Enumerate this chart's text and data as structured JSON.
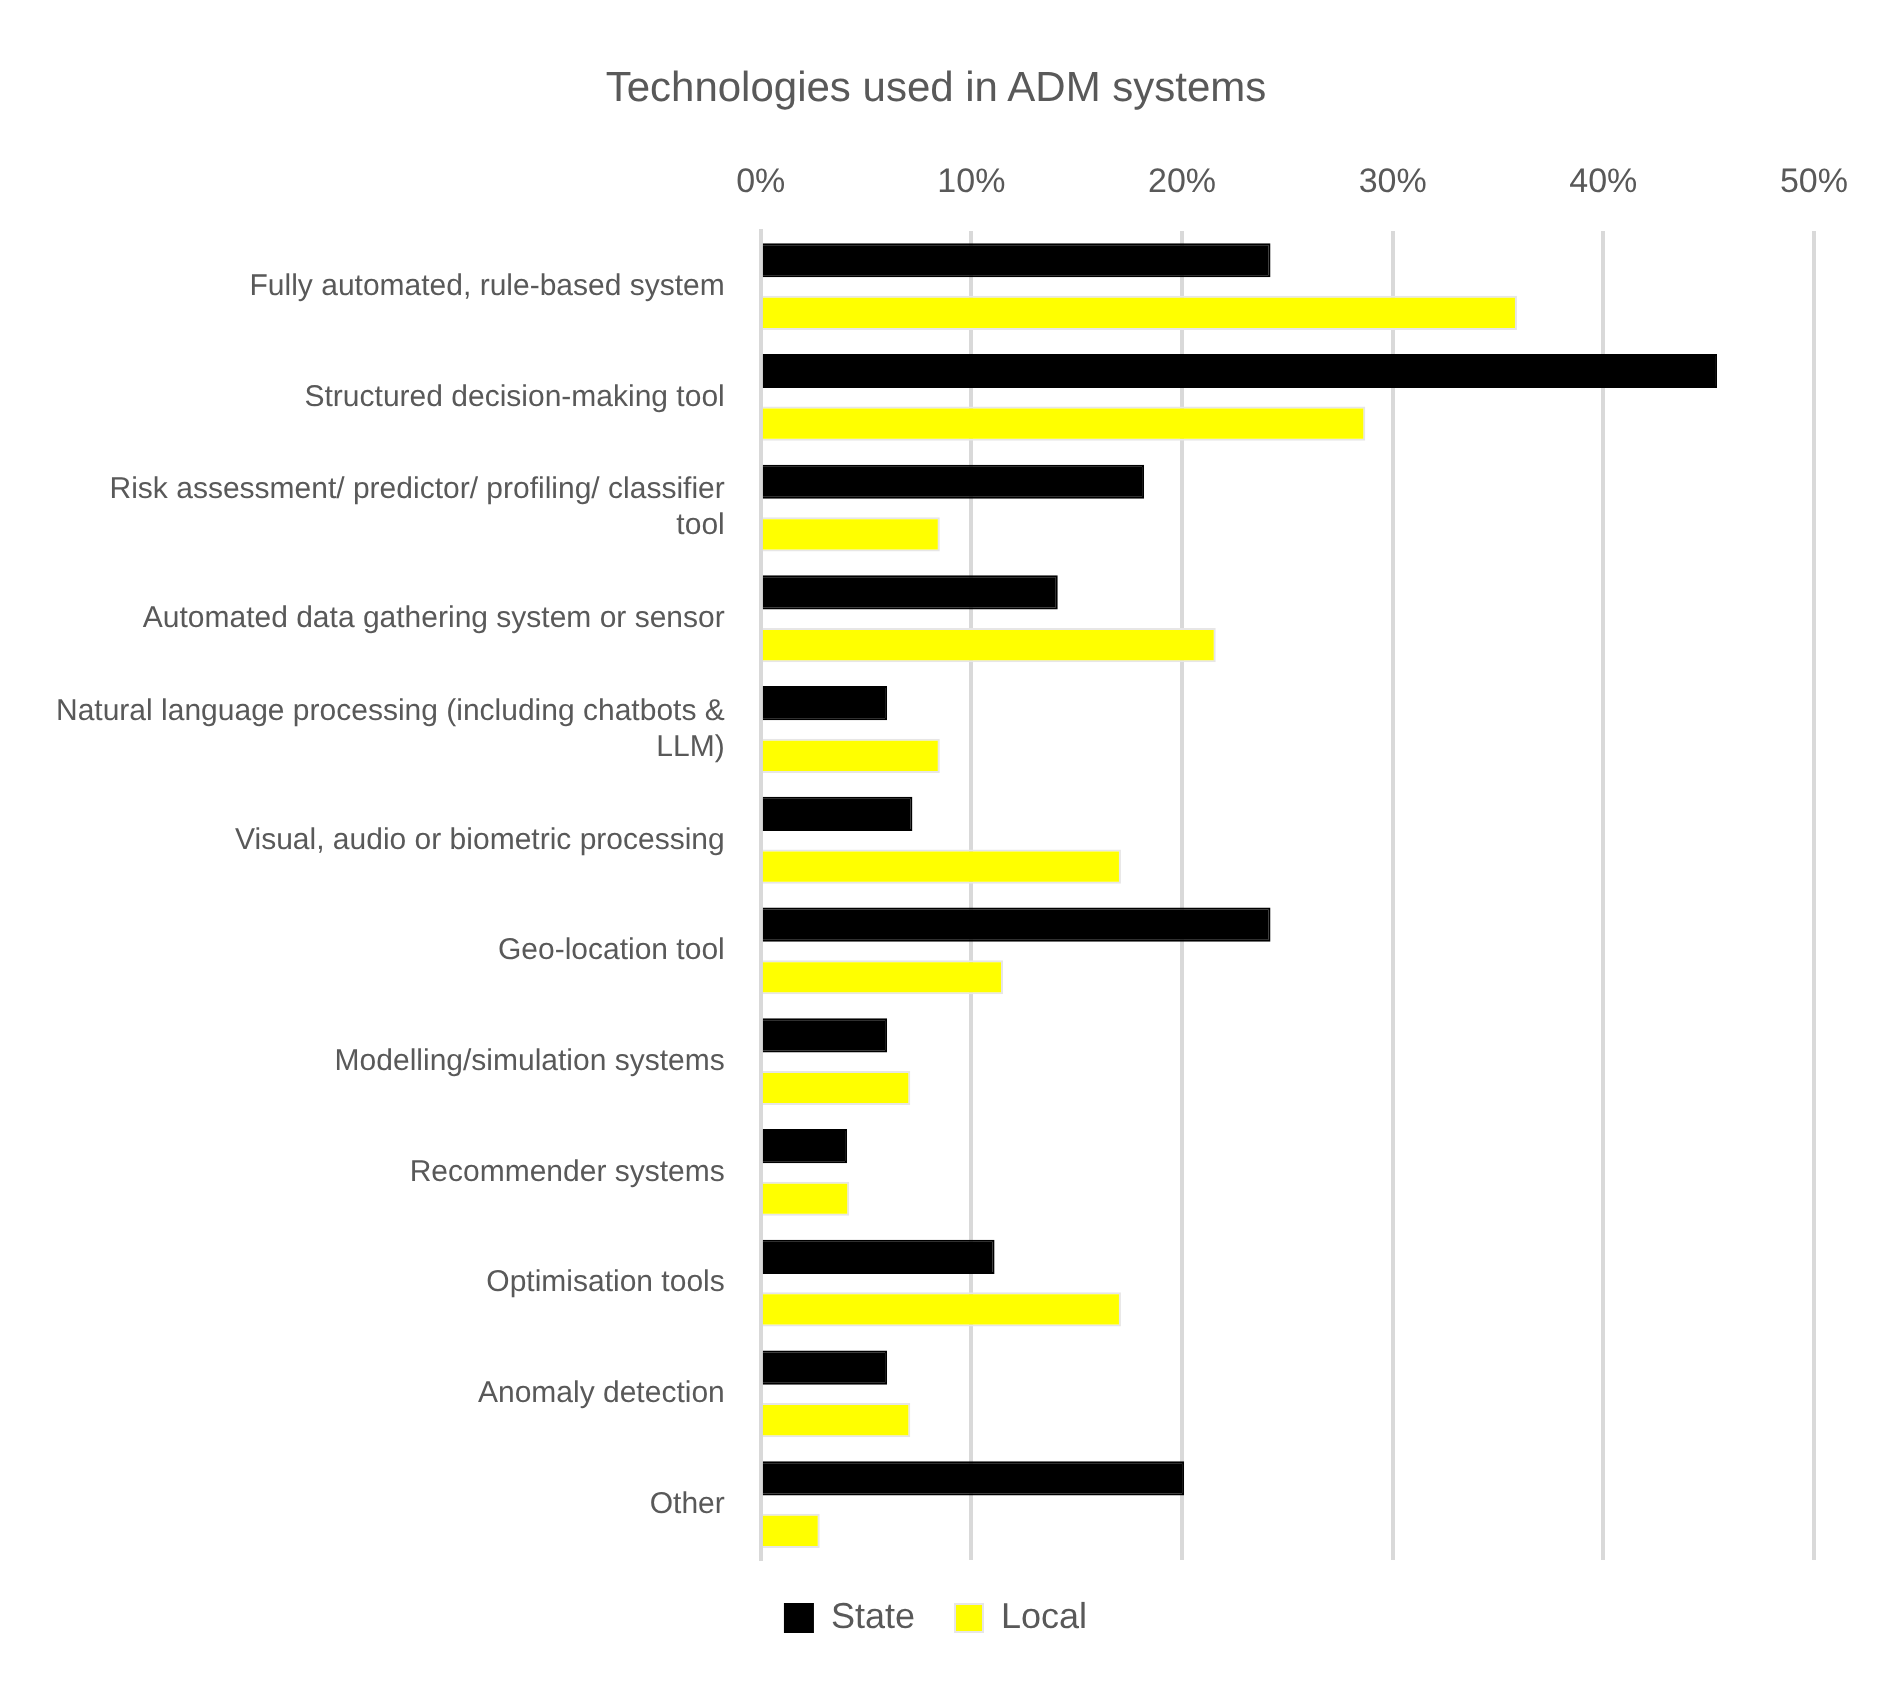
{
  "chart_data": {
    "type": "bar",
    "orientation": "horizontal",
    "title": "Technologies used in ADM systems",
    "categories": [
      "Fully automated, rule-based system",
      "Structured decision-making tool",
      "Risk assessment/ predictor/ profiling/ classifier tool",
      "Automated data gathering system or sensor",
      "Natural language processing (including chatbots & LLM)",
      "Visual, audio or biometric processing",
      "Geo-location tool",
      "Modelling/simulation systems",
      "Recommender systems",
      "Optimisation tools",
      "Anomaly detection",
      "Other"
    ],
    "series": [
      {
        "name": "State",
        "color": "#000000",
        "values": [
          24.2,
          45.4,
          18.2,
          14.1,
          6.0,
          7.2,
          24.2,
          6.0,
          4.1,
          11.1,
          6.0,
          20.1
        ]
      },
      {
        "name": "Local",
        "color": "#ffff00",
        "values": [
          35.9,
          28.7,
          8.5,
          21.6,
          8.5,
          17.1,
          11.5,
          7.1,
          4.2,
          17.1,
          7.1,
          2.8
        ]
      }
    ],
    "xlim": [
      0,
      50
    ],
    "xticks": [
      {
        "value": 0,
        "label": "0%"
      },
      {
        "value": 10,
        "label": "10%"
      },
      {
        "value": 20,
        "label": "20%"
      },
      {
        "value": 30,
        "label": "30%"
      },
      {
        "value": 40,
        "label": "40%"
      },
      {
        "value": 50,
        "label": "50%"
      }
    ],
    "grid": "x",
    "legend": "bottom"
  }
}
